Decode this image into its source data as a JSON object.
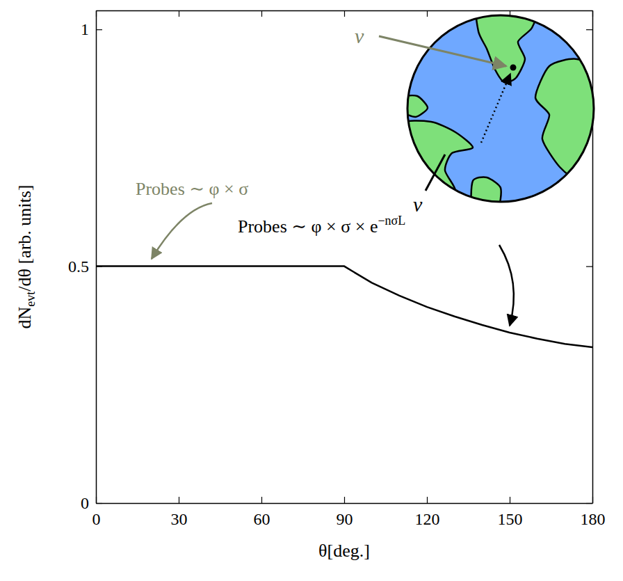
{
  "chart_data": {
    "type": "line",
    "x_label": "θ[deg.]",
    "y_label": {
      "text": "dN",
      "sub": "evt",
      "after": "/dθ [arb. units]"
    },
    "x": [
      0,
      90,
      100,
      110,
      120,
      130,
      140,
      150,
      160,
      170,
      180
    ],
    "values": [
      0.5,
      0.5,
      0.465,
      0.438,
      0.414,
      0.394,
      0.376,
      0.36,
      0.347,
      0.336,
      0.329
    ],
    "color": "#000000",
    "xlim": [
      0,
      180
    ],
    "xticks": [
      0,
      30,
      60,
      90,
      120,
      150,
      180
    ],
    "ylim": [
      0,
      1.04
    ],
    "yticks": [
      0,
      0.5,
      1
    ],
    "grid": false,
    "annotations": [
      {
        "text": "Probes ∼ φ × σ",
        "color": "#7d8466"
      },
      {
        "text": "Probes ∼ φ × σ × e",
        "superscript": "−nσL",
        "color": "#000000"
      }
    ],
    "inset_labels": [
      {
        "text": "ν",
        "color": "#7d8466"
      },
      {
        "text": "ν",
        "color": "#000000"
      }
    ]
  }
}
